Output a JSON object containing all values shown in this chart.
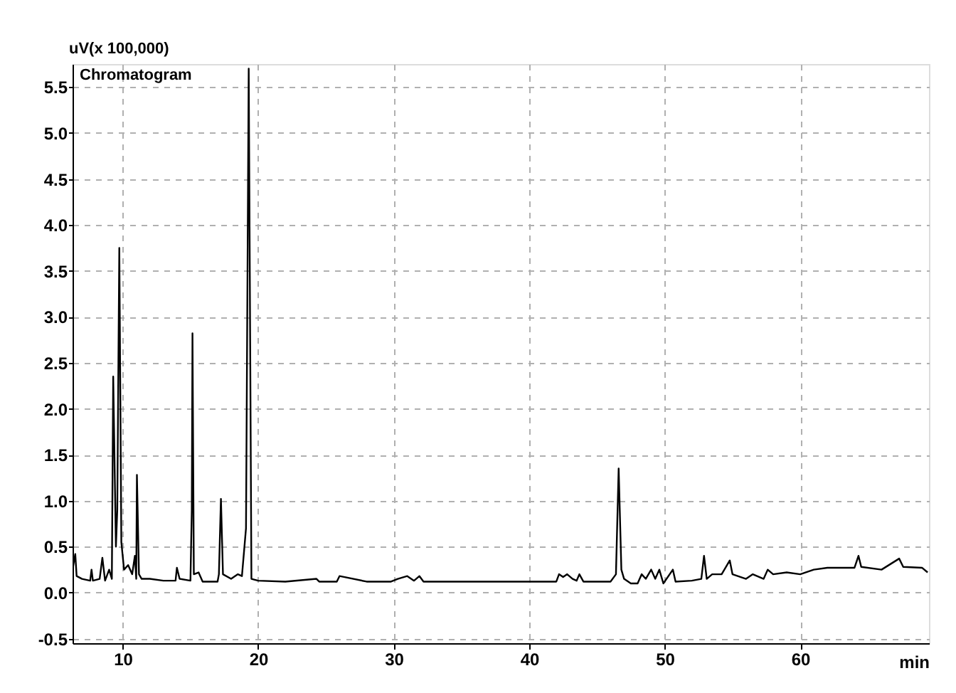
{
  "chart_data": {
    "type": "line",
    "ylabel": "uV(x 100,000)",
    "xlabel": "min",
    "annotations": [
      "Chromatogram"
    ],
    "x": [
      6.3,
      6.5,
      6.6,
      7.0,
      7.6,
      7.7,
      7.8,
      8.3,
      8.5,
      8.7,
      9.0,
      9.2,
      9.3,
      9.5,
      9.6,
      9.75,
      9.9,
      10.1,
      10.4,
      10.7,
      10.9,
      11.0,
      11.05,
      11.2,
      11.4,
      12,
      13,
      13.9,
      14.0,
      14.2,
      15.0,
      15.1,
      15.15,
      15.25,
      15.6,
      15.9,
      16.3,
      17.0,
      17.1,
      17.25,
      17.4,
      18.0,
      18.5,
      18.8,
      19.1,
      19.3,
      19.5,
      20,
      22,
      24.3,
      24.5,
      25.8,
      26.0,
      28,
      29.8,
      30.3,
      31,
      31.5,
      31.9,
      32.2,
      35,
      40,
      42.0,
      42.2,
      42.5,
      42.8,
      43.2,
      43.5,
      43.7,
      44,
      45.5,
      46.0,
      46.4,
      46.6,
      46.8,
      47.0,
      47.5,
      48.0,
      48.3,
      48.6,
      49.0,
      49.3,
      49.6,
      49.9,
      50.6,
      50.8,
      52.0,
      52.7,
      52.9,
      53.1,
      53.5,
      54.2,
      54.8,
      55.0,
      56.0,
      56.5,
      57.3,
      57.6,
      58.0,
      59.0,
      60.0,
      61.0,
      62.0,
      64.0,
      64.3,
      64.5,
      66,
      67.3,
      67.6,
      69.0,
      69.4
    ],
    "series": [
      {
        "color": "#000000",
        "values": [
          0.25,
          0.42,
          0.18,
          0.15,
          0.13,
          0.25,
          0.13,
          0.15,
          0.38,
          0.13,
          0.25,
          0.15,
          2.35,
          0.5,
          0.9,
          3.75,
          0.55,
          0.25,
          0.3,
          0.2,
          0.4,
          0.15,
          1.28,
          0.2,
          0.15,
          0.15,
          0.13,
          0.13,
          0.27,
          0.15,
          0.13,
          0.9,
          2.82,
          0.2,
          0.22,
          0.12,
          0.12,
          0.12,
          0.2,
          1.02,
          0.2,
          0.15,
          0.2,
          0.18,
          0.7,
          5.7,
          0.15,
          0.13,
          0.12,
          0.15,
          0.12,
          0.12,
          0.18,
          0.12,
          0.12,
          0.15,
          0.18,
          0.13,
          0.18,
          0.12,
          0.12,
          0.12,
          0.12,
          0.2,
          0.17,
          0.2,
          0.15,
          0.13,
          0.2,
          0.12,
          0.12,
          0.12,
          0.2,
          1.35,
          0.25,
          0.15,
          0.1,
          0.1,
          0.2,
          0.15,
          0.25,
          0.15,
          0.25,
          0.1,
          0.25,
          0.12,
          0.13,
          0.15,
          0.4,
          0.15,
          0.2,
          0.2,
          0.35,
          0.2,
          0.15,
          0.2,
          0.15,
          0.25,
          0.2,
          0.22,
          0.2,
          0.25,
          0.27,
          0.27,
          0.4,
          0.28,
          0.25,
          0.37,
          0.28,
          0.27,
          0.22
        ]
      }
    ],
    "xlim": [
      6.3,
      69.5
    ],
    "ylim": [
      -0.55,
      5.75
    ],
    "xticks": [
      10,
      20,
      30,
      40,
      50,
      60
    ],
    "yticks": [
      {
        "value": -0.5,
        "label": "-0.5"
      },
      {
        "value": 0,
        "label": "0.0"
      },
      {
        "value": 0.5,
        "label": "0.5"
      },
      {
        "value": 1,
        "label": "1.0"
      },
      {
        "value": 1.5,
        "label": "1.5"
      },
      {
        "value": 2,
        "label": "2.0"
      },
      {
        "value": 2.5,
        "label": "2.5"
      },
      {
        "value": 3,
        "label": "3.0"
      },
      {
        "value": 3.5,
        "label": "3.5"
      },
      {
        "value": 4,
        "label": "4.0"
      },
      {
        "value": 4.5,
        "label": "4.5"
      },
      {
        "value": 5,
        "label": "5.0"
      },
      {
        "value": 5.5,
        "label": "5.5"
      }
    ],
    "grid": true,
    "marker": "none",
    "line_style": "solid"
  }
}
